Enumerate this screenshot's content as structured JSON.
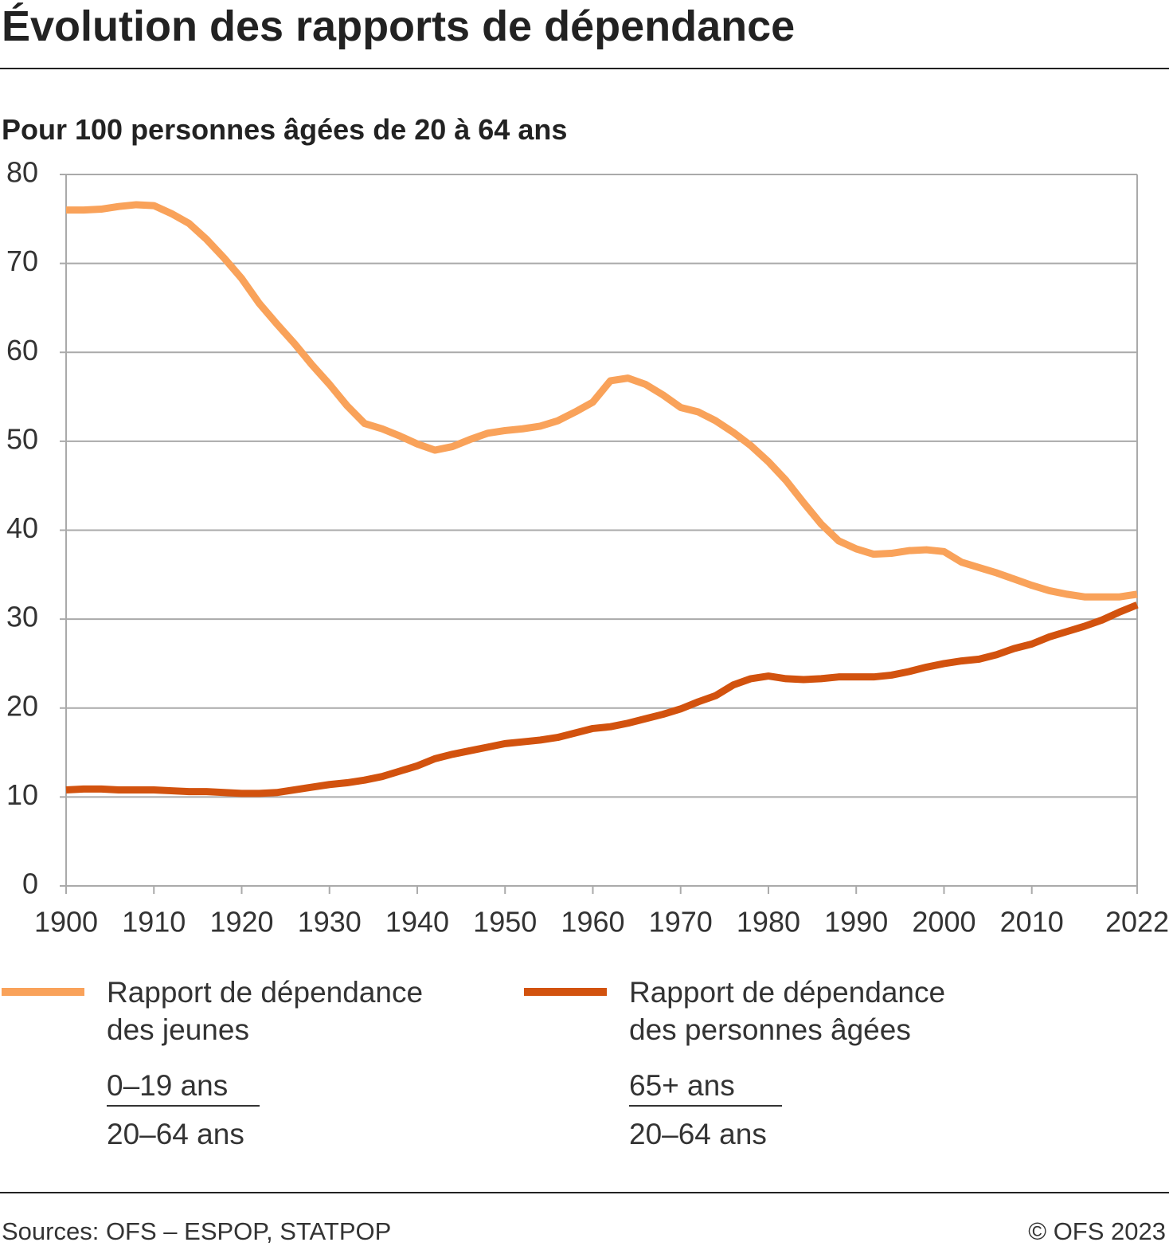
{
  "chart_data": {
    "type": "line",
    "title": "Évolution des rapports de dépendance",
    "subtitle": "Pour 100 personnes âgées de 20 à 64 ans",
    "source": "Sources: OFS – ESPOP, STATPOP",
    "copyright": "© OFS 2023",
    "x": [
      1900,
      1902,
      1904,
      1906,
      1908,
      1910,
      1912,
      1914,
      1916,
      1918,
      1920,
      1922,
      1924,
      1926,
      1928,
      1930,
      1932,
      1934,
      1936,
      1938,
      1940,
      1942,
      1944,
      1946,
      1948,
      1950,
      1952,
      1954,
      1956,
      1958,
      1960,
      1962,
      1964,
      1966,
      1968,
      1970,
      1972,
      1974,
      1976,
      1978,
      1980,
      1982,
      1984,
      1986,
      1988,
      1990,
      1992,
      1994,
      1996,
      1998,
      2000,
      2002,
      2004,
      2006,
      2008,
      2010,
      2012,
      2014,
      2016,
      2018,
      2020,
      2022
    ],
    "series": [
      {
        "name": "Rapport de dépendance des jeunes",
        "numerator": "0–19 ans",
        "denominator": "20–64 ans",
        "color": "#f9a25a",
        "values": [
          76.0,
          76.0,
          76.1,
          76.4,
          76.6,
          76.5,
          75.6,
          74.5,
          72.7,
          70.6,
          68.3,
          65.5,
          63.2,
          61.0,
          58.6,
          56.4,
          54.0,
          52.0,
          51.4,
          50.6,
          49.7,
          49.0,
          49.4,
          50.2,
          50.9,
          51.2,
          51.4,
          51.7,
          52.3,
          53.3,
          54.4,
          56.8,
          57.1,
          56.4,
          55.2,
          53.8,
          53.3,
          52.3,
          51.0,
          49.5,
          47.7,
          45.6,
          43.1,
          40.7,
          38.8,
          37.9,
          37.3,
          37.4,
          37.7,
          37.8,
          37.6,
          36.4,
          35.8,
          35.2,
          34.5,
          33.8,
          33.2,
          32.8,
          32.5,
          32.5,
          32.5,
          32.8
        ]
      },
      {
        "name": "Rapport de dépendance des personnes âgées",
        "numerator": "65+ ans",
        "denominator": "20–64 ans",
        "color": "#d2520e",
        "values": [
          10.8,
          10.9,
          10.9,
          10.8,
          10.8,
          10.8,
          10.7,
          10.6,
          10.6,
          10.5,
          10.4,
          10.4,
          10.5,
          10.8,
          11.1,
          11.4,
          11.6,
          11.9,
          12.3,
          12.9,
          13.5,
          14.3,
          14.8,
          15.2,
          15.6,
          16.0,
          16.2,
          16.4,
          16.7,
          17.2,
          17.7,
          17.9,
          18.3,
          18.8,
          19.3,
          19.9,
          20.7,
          21.4,
          22.6,
          23.3,
          23.6,
          23.3,
          23.2,
          23.3,
          23.5,
          23.5,
          23.5,
          23.7,
          24.1,
          24.6,
          25.0,
          25.3,
          25.5,
          26.0,
          26.7,
          27.2,
          28.0,
          28.6,
          29.2,
          29.9,
          30.8,
          31.6
        ]
      }
    ],
    "xlim": [
      1900,
      2022
    ],
    "xticks": [
      1900,
      1910,
      1920,
      1930,
      1940,
      1950,
      1960,
      1970,
      1980,
      1990,
      2000,
      2010,
      2022
    ],
    "ylim": [
      0,
      80
    ],
    "yticks": [
      0,
      10,
      20,
      30,
      40,
      50,
      60,
      70,
      80
    ],
    "grid": true
  }
}
